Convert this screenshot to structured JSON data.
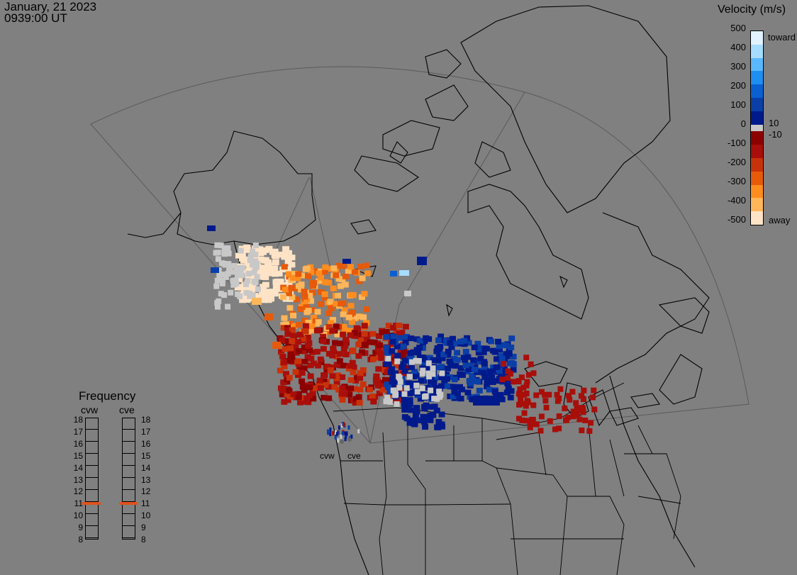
{
  "header": {
    "date": "January, 21 2023",
    "time": "0939:00 UT"
  },
  "colorbar": {
    "title": "Velocity (m/s)",
    "ticks": [
      "500",
      "400",
      "300",
      "200",
      "100",
      "0",
      "-100",
      "-200",
      "-300",
      "-400",
      "-500"
    ],
    "toward_label": "toward",
    "away_label": "away",
    "pos_threshold": "10",
    "neg_threshold": "-10",
    "colors": {
      "toward": [
        "#e0f3ff",
        "#a6dcff",
        "#5ab8ff",
        "#1e8ef0",
        "#0a60d0",
        "#0a3fa8",
        "#001a8c"
      ],
      "away": [
        "#8c0000",
        "#a80f0a",
        "#c8320a",
        "#e65a0a",
        "#ff8c1e",
        "#ffb65a",
        "#ffe3c6"
      ],
      "ground": "#c8c8c8"
    }
  },
  "frequency": {
    "title": "Frequency",
    "radars": [
      "cvw",
      "cve"
    ],
    "scale": [
      "18",
      "17",
      "16",
      "15",
      "14",
      "13",
      "12",
      "11",
      "10",
      "9",
      "8"
    ],
    "cvw_mhz": 10.9,
    "cve_mhz": 10.9,
    "mark_color": "#e0521c"
  },
  "sites": {
    "cvw": "cvw",
    "cve": "cve"
  }
}
